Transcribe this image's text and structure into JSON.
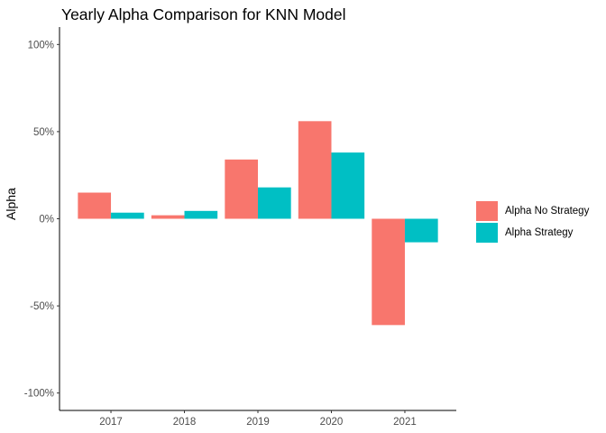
{
  "chart_data": {
    "type": "bar",
    "title": "Yearly Alpha Comparison for KNN Model",
    "xlabel": "",
    "ylabel": "Alpha",
    "categories": [
      "2017",
      "2018",
      "2019",
      "2020",
      "2021"
    ],
    "series": [
      {
        "name": "Alpha No Strategy",
        "color": "#F8766D",
        "values": [
          0.15,
          0.02,
          0.34,
          0.56,
          -0.61
        ]
      },
      {
        "name": "Alpha Strategy",
        "color": "#00BFC4",
        "values": [
          0.035,
          0.045,
          0.18,
          0.38,
          -0.135
        ]
      }
    ],
    "ylim": [
      -1.1,
      1.1
    ],
    "y_ticks": [
      -1.0,
      -0.5,
      0.0,
      0.5,
      1.0
    ],
    "y_tick_labels": [
      "-100%",
      "-50%",
      "0%",
      "50%",
      "100%"
    ],
    "grid": false,
    "legend_position": "right"
  }
}
